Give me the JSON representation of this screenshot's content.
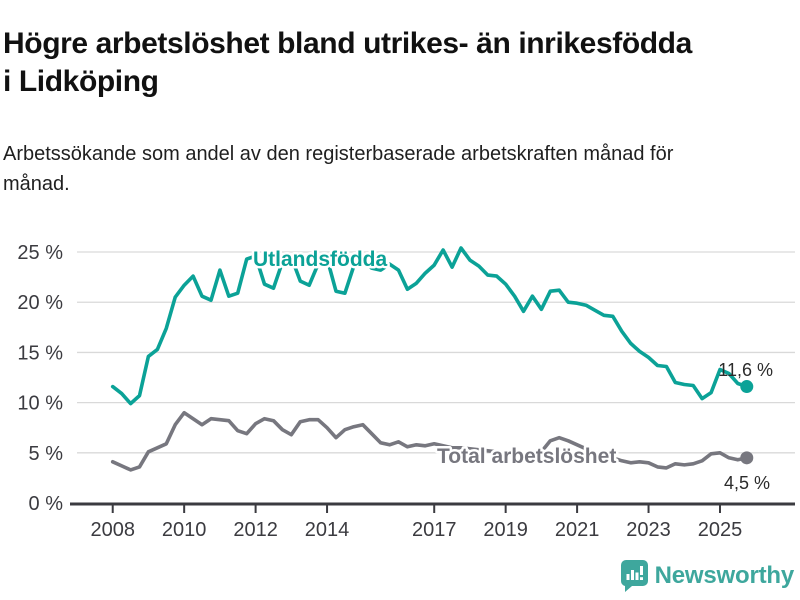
{
  "header": {
    "title": "Högre arbetslöshet bland utrikes- än inrikesfödda i Lidköping",
    "subtitle": "Arbetssökande som andel av den registerbaserade arbetskraften månad för månad."
  },
  "footer": {
    "brand": "Newsworthy",
    "logo_icon": "newsworthy-chart-bubble-icon"
  },
  "colors": {
    "foreign_born_line": "#0ba297",
    "total_line": "#77777f",
    "axis": "#3b3b40",
    "grid": "#d9d9d9",
    "value_label": "#2b2b2b",
    "brand": "#3ea79d"
  },
  "chart_data": {
    "type": "line",
    "title": "Högre arbetslöshet bland utrikes- än inrikesfödda i Lidköping",
    "xlabel": "",
    "ylabel": "",
    "grid": "horizontal",
    "x_range": [
      2007.0,
      2027.1
    ],
    "y_range": [
      0,
      25.9
    ],
    "x_ticks": [
      {
        "value": 2008,
        "label": "2008"
      },
      {
        "value": 2010,
        "label": "2010"
      },
      {
        "value": 2012,
        "label": "2012"
      },
      {
        "value": 2014,
        "label": "2014"
      },
      {
        "value": 2017,
        "label": "2017"
      },
      {
        "value": 2019,
        "label": "2019"
      },
      {
        "value": 2021,
        "label": "2021"
      },
      {
        "value": 2023,
        "label": "2023"
      },
      {
        "value": 2025,
        "label": "2025"
      }
    ],
    "y_ticks": [
      {
        "value": 0,
        "label": "0 %"
      },
      {
        "value": 5,
        "label": "5 %"
      },
      {
        "value": 10,
        "label": "10 %"
      },
      {
        "value": 15,
        "label": "15 %"
      },
      {
        "value": 20,
        "label": "20 %"
      },
      {
        "value": 25,
        "label": "25 %"
      }
    ],
    "x": [
      2008.0,
      2008.25,
      2008.5,
      2008.75,
      2009.0,
      2009.25,
      2009.5,
      2009.75,
      2010.0,
      2010.25,
      2010.5,
      2010.75,
      2011.0,
      2011.25,
      2011.5,
      2011.75,
      2012.0,
      2012.25,
      2012.5,
      2012.75,
      2013.0,
      2013.25,
      2013.5,
      2013.75,
      2014.0,
      2014.25,
      2014.5,
      2014.75,
      2015.0,
      2015.25,
      2015.5,
      2015.75,
      2016.0,
      2016.25,
      2016.5,
      2016.75,
      2017.0,
      2017.25,
      2017.5,
      2017.75,
      2018.0,
      2018.25,
      2018.5,
      2018.75,
      2019.0,
      2019.25,
      2019.5,
      2019.75,
      2020.0,
      2020.25,
      2020.5,
      2020.75,
      2021.0,
      2021.25,
      2021.5,
      2021.75,
      2022.0,
      2022.25,
      2022.5,
      2022.75,
      2023.0,
      2023.25,
      2023.5,
      2023.75,
      2024.0,
      2024.25,
      2024.5,
      2024.75,
      2025.0,
      2025.25,
      2025.5,
      2025.75
    ],
    "series": [
      {
        "name": "Utlandsfödda",
        "color": "#0ba297",
        "end_label": "11,6 %",
        "end_value": 11.6,
        "values": [
          11.6,
          10.9,
          9.9,
          10.7,
          14.6,
          15.3,
          17.4,
          20.5,
          21.7,
          22.6,
          20.6,
          20.2,
          23.2,
          20.6,
          20.9,
          24.3,
          24.6,
          21.8,
          21.4,
          24.0,
          24.5,
          22.1,
          21.7,
          23.8,
          24.4,
          21.1,
          20.9,
          23.6,
          24.2,
          23.4,
          23.2,
          23.8,
          23.2,
          21.3,
          21.9,
          22.9,
          23.7,
          25.2,
          23.5,
          25.4,
          24.2,
          23.6,
          22.7,
          22.6,
          21.8,
          20.6,
          19.1,
          20.6,
          19.3,
          21.1,
          21.2,
          20.0,
          19.9,
          19.7,
          19.2,
          18.7,
          18.6,
          17.1,
          15.9,
          15.1,
          14.5,
          13.7,
          13.6,
          12.0,
          11.8,
          11.7,
          10.4,
          11.0,
          13.3,
          12.9,
          11.9,
          11.6
        ]
      },
      {
        "name": "Total arbetslöshet",
        "color": "#77777f",
        "end_label": "4,5 %",
        "end_value": 4.5,
        "values": [
          4.1,
          3.7,
          3.3,
          3.6,
          5.1,
          5.5,
          5.9,
          7.8,
          9.0,
          8.4,
          7.8,
          8.4,
          8.3,
          8.2,
          7.2,
          6.9,
          7.9,
          8.4,
          8.2,
          7.3,
          6.8,
          8.1,
          8.3,
          8.3,
          7.5,
          6.5,
          7.3,
          7.6,
          7.8,
          6.9,
          6.0,
          5.8,
          6.1,
          5.6,
          5.8,
          5.7,
          5.9,
          5.7,
          5.5,
          5.5,
          5.4,
          5.3,
          5.2,
          5.1,
          5.0,
          4.9,
          4.8,
          4.9,
          5.1,
          6.2,
          6.5,
          6.2,
          5.8,
          5.4,
          5.0,
          4.7,
          4.5,
          4.2,
          4.0,
          4.1,
          4.0,
          3.6,
          3.5,
          3.9,
          3.8,
          3.9,
          4.2,
          4.9,
          5.0,
          4.5,
          4.3,
          4.5
        ]
      }
    ],
    "legend_position": "inline-labels-on-lines"
  }
}
